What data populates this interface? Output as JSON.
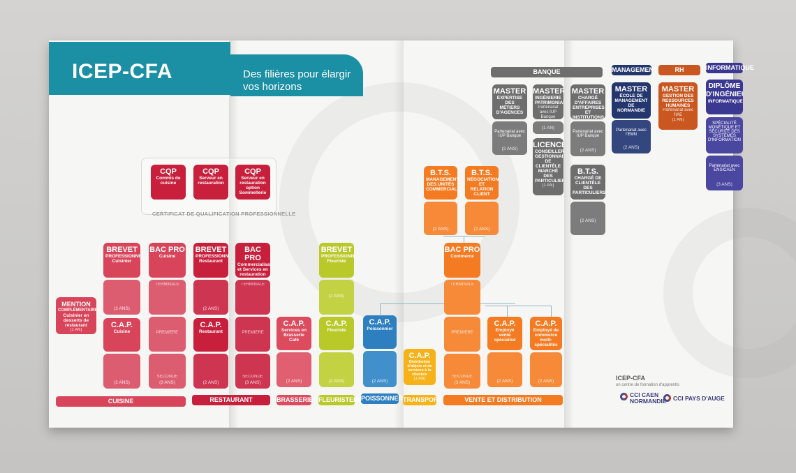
{
  "header": {
    "logo": "ICEP-CFA",
    "tagline_1": "Des filières pour élargir",
    "tagline_2": "vos horizons"
  },
  "cqp": {
    "caption": "CERTIFICAT DE QUALIFICATION PROFESSIONNELLE",
    "items": [
      {
        "title": "CQP",
        "sub": "Commis de cuisine"
      },
      {
        "title": "CQP",
        "sub": "Serveur en restauration"
      },
      {
        "title": "CQP",
        "sub": "Serveur en restauration option Sommellerie"
      }
    ]
  },
  "levels": {
    "terminale": "TERMINALE",
    "premiere": "PREMIÈRE",
    "seconde": "SECONDE"
  },
  "durations": {
    "one": "(1 AN)",
    "two": "(2 ANS)",
    "three": "(3 ANS)"
  },
  "cuisine": {
    "mention_title": "MENTION",
    "mention_sub": "COMPLÉMENTAIRE",
    "mention_desc": "Cuisinier en desserts de restaurant",
    "brevet_title": "BREVET",
    "brevet_sub": "PROFESSIONNEL",
    "brevet_desc": "Cuisinier",
    "cap_title": "C.A.P.",
    "cap_desc": "Cuisine",
    "bac_title": "BAC PRO",
    "bac_desc": "Cuisine"
  },
  "restaurant": {
    "brevet_title": "BREVET",
    "brevet_sub": "PROFESSIONNEL",
    "brevet_desc": "Restaurant",
    "cap_title": "C.A.P.",
    "cap_desc": "Restaurant",
    "bac_title": "BAC PRO",
    "bac_desc": "Commercialisation et Services en restauration"
  },
  "brasserie": {
    "cap_title": "C.A.P.",
    "cap_desc": "Services en Brasserie Café"
  },
  "fleuristerie": {
    "brevet_title": "BREVET",
    "brevet_sub": "PROFESSIONNEL",
    "brevet_desc": "Fleuriste",
    "cap_title": "C.A.P.",
    "cap_desc": "Fleuriste"
  },
  "poissonnerie": {
    "cap_title": "C.A.P.",
    "cap_desc": "Poissonnier"
  },
  "transport": {
    "cap_title": "C.A.P.",
    "cap_desc": "Distribution d'objets et de services à la clientèle"
  },
  "vente": {
    "bts1_title": "B.T.S.",
    "bts1_desc": "MANAGEMENT DES UNITÉS COMMERCIALES",
    "bts2_title": "B.T.S.",
    "bts2_desc": "NÉGOCIATION ET RELATION CLIENT",
    "bac_title": "BAC PRO",
    "bac_desc": "Commerce",
    "cap1_title": "C.A.P.",
    "cap1_desc": "Employé vente spécialisé",
    "cap2_title": "C.A.P.",
    "cap2_desc": "Employé de commerce multi-spécialités"
  },
  "bottom_bars": {
    "cuisine": "CUISINE",
    "restaurant": "RESTAURANT",
    "brasserie": "BRASSERIE",
    "fleuristerie": "FLEURISTERIE",
    "poissonnerie": "POISSONNERIE",
    "transport": "TRANSPORT",
    "vente": "VENTE ET DISTRIBUTION"
  },
  "top_bars": {
    "banque": "BANQUE",
    "management": "MANAGEMENT",
    "rh": "RH",
    "informatique": "INFORMATIQUE"
  },
  "banque": {
    "m1_title": "MASTER",
    "m1_desc": "EXPERTISE DES MÉTIERS D'AGENCES",
    "m1_partner": "Partenariat avec IUP Banque",
    "m2_title": "MASTER",
    "m2_desc": "INGÉNIERIE PATRIMONIALE",
    "m2_partner": "Partenariat avec IUP Banque",
    "m3_title": "MASTER",
    "m3_desc": "CHARGÉ D'AFFAIRES ENTREPRISES ET INSTITUTIONS",
    "m3_partner": "Partenariat avec IUP Banque",
    "lic_title": "LICENCE",
    "lic_desc": "CONSEILLER GESTIONNAIRE DE CLIENTÈLE MARCHÉ DES PARTICULIERS",
    "bts_title": "B.T.S.",
    "bts_desc": "CHARGÉ DE CLIENTÈLE DES PARTICULIERS"
  },
  "management": {
    "title": "MASTER",
    "desc": "ÉCOLE DE MANAGEMENT DE NORMANDIE",
    "partner": "Partenariat avec l'EMN"
  },
  "rh": {
    "title": "MASTER",
    "desc": "GESTION DES RESSOURCES HUMAINES",
    "partner": "Partenariat avec l'IAE"
  },
  "informatique": {
    "title": "DIPLÔME D'INGÉNIEUR",
    "sub": "INFORMATIQUE",
    "desc": "SPÉCIALITÉ MONÉTIQUE ET SÉCURITÉ DES SYSTÈMES D'INFORMATION",
    "partner": "Partenariat avec ENSICAEN"
  },
  "footer": {
    "title": "ICEP-CFA",
    "subtitle": "un centre de formation d'apprentis",
    "cci1_a": "CCI CAEN",
    "cci1_b": "NORMANDIE",
    "cci2": "CCI PAYS D'AUGE"
  },
  "colors": {
    "teal": "#1b8fa3",
    "cuisine": "#d8455a",
    "restaurant": "#c8203c",
    "brasserie": "#dc4b5e",
    "fleur": "#b9c92a",
    "poisson": "#2d7fc0",
    "transport": "#f7b21a",
    "vente": "#f47b22",
    "banque": "#6e6e6e",
    "management": "#23366d",
    "rh": "#c9571f",
    "info": "#3b3891"
  }
}
